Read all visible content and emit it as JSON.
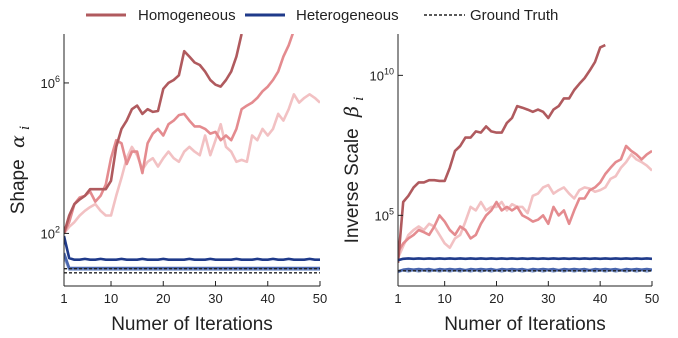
{
  "colors": {
    "homogeneous": [
      "#b05a5e",
      "#e48b8f",
      "#f2c1c3"
    ],
    "heterogeneous": [
      "#1f3a8a",
      "#4a66ad",
      "#8aa2d4"
    ],
    "ground_truth": "#222222"
  },
  "legend": {
    "homogeneous": "Homogeneous",
    "heterogeneous": "Heterogeneous",
    "ground_truth": "Ground Truth"
  },
  "chart_data": [
    {
      "type": "line",
      "panel": "left",
      "ylabel_prefix": "Shape",
      "ylabel_symbol": "α",
      "ylabel_sub": "i",
      "xlabel": "Numer of Iterations",
      "y_scale": "log",
      "xlim": [
        1,
        50
      ],
      "ylim": [
        4,
        20000000
      ],
      "x_ticks": [
        "1",
        "10",
        "20",
        "30",
        "40",
        "50"
      ],
      "y_ticks": [
        {
          "value": 100,
          "base": "10",
          "exp": "2"
        },
        {
          "value": 1000000,
          "base": "10",
          "exp": "6"
        }
      ],
      "x": [
        1,
        2,
        3,
        4,
        5,
        6,
        7,
        8,
        9,
        10,
        11,
        12,
        13,
        14,
        15,
        16,
        17,
        18,
        19,
        20,
        21,
        22,
        23,
        24,
        25,
        26,
        27,
        28,
        29,
        30,
        31,
        32,
        33,
        34,
        35,
        36,
        37,
        38,
        39,
        40,
        41,
        42,
        43,
        44,
        45,
        46,
        47,
        48,
        49,
        50
      ],
      "series": [
        {
          "group": "homogeneous",
          "shade": 0,
          "values": [
            100,
            300,
            600,
            800,
            1000,
            1500,
            1500,
            1500,
            1500,
            2500,
            20000,
            60000,
            100000,
            200000,
            250000,
            150000,
            200000,
            170000,
            180000,
            700000,
            1000000,
            1200000,
            1600000,
            7000000,
            5000000,
            3500000,
            3000000,
            2000000,
            1200000,
            900000,
            800000,
            1200000,
            2000000,
            5000000,
            20000000,
            null,
            null,
            null,
            null,
            null,
            null,
            null,
            null,
            null,
            null,
            null,
            null,
            null,
            null,
            null
          ]
        },
        {
          "group": "homogeneous",
          "shade": 1,
          "values": [
            100,
            200,
            600,
            900,
            1000,
            1300,
            700,
            1000,
            2000,
            10000,
            30000,
            25000,
            7000,
            15000,
            15000,
            4000,
            25000,
            45000,
            60000,
            40000,
            80000,
            100000,
            140000,
            150000,
            100000,
            70000,
            70000,
            60000,
            45000,
            50000,
            30000,
            40000,
            30000,
            60000,
            200000,
            250000,
            300000,
            400000,
            600000,
            800000,
            1200000,
            2000000,
            5000000,
            10000000,
            25000000,
            null,
            null,
            null,
            null,
            null
          ]
        },
        {
          "group": "homogeneous",
          "shade": 2,
          "values": [
            100,
            150,
            200,
            300,
            400,
            500,
            600,
            400,
            300,
            300,
            1000,
            3000,
            10000,
            20000,
            12000,
            5000,
            8000,
            10000,
            6000,
            10000,
            15000,
            10000,
            8000,
            15000,
            20000,
            15000,
            12000,
            40000,
            12000,
            30000,
            80000,
            20000,
            15000,
            8000,
            9000,
            8000,
            40000,
            30000,
            60000,
            40000,
            60000,
            150000,
            100000,
            200000,
            500000,
            300000,
            400000,
            500000,
            400000,
            300000
          ]
        },
        {
          "group": "heterogeneous",
          "shade": 0,
          "values": [
            85,
            22,
            20,
            20,
            21,
            20,
            20,
            21,
            20,
            20,
            20,
            21,
            20,
            20,
            20,
            21,
            20,
            20,
            20,
            21,
            20,
            20,
            20,
            20,
            21,
            20,
            20,
            20,
            21,
            20,
            20,
            20,
            20,
            21,
            20,
            20,
            20,
            21,
            20,
            20,
            21,
            20,
            20,
            21,
            20,
            20,
            20,
            21,
            20,
            20
          ]
        },
        {
          "group": "heterogeneous",
          "shade": 1,
          "values": [
            30,
            12,
            12,
            12,
            12,
            12,
            12,
            12,
            12,
            12,
            12,
            12,
            12,
            12,
            12,
            12,
            12,
            12,
            12,
            12,
            12,
            12,
            12,
            12,
            12,
            12,
            12,
            12,
            12,
            12,
            12,
            12,
            12,
            12,
            12,
            12,
            12,
            12,
            12,
            12,
            12,
            12,
            12,
            12,
            12,
            12,
            12,
            12,
            12,
            12
          ]
        },
        {
          "group": "heterogeneous",
          "shade": 2,
          "values": [
            25,
            11,
            11,
            11,
            11,
            11,
            11,
            11,
            11,
            11,
            11,
            11,
            11,
            11,
            11,
            11,
            11,
            11,
            11,
            11,
            11,
            11,
            11,
            11,
            11,
            11,
            11,
            11,
            11,
            11,
            11,
            11,
            11,
            11,
            11,
            11,
            11,
            11,
            11,
            11,
            11,
            11,
            11,
            11,
            11,
            11,
            11,
            11,
            11,
            11
          ]
        },
        {
          "group": "ground_truth",
          "values": [
            9,
            9,
            9,
            9,
            9,
            9,
            9,
            9,
            9,
            9,
            9,
            9,
            9,
            9,
            9,
            9,
            9,
            9,
            9,
            9,
            9,
            9,
            9,
            9,
            9,
            9,
            9,
            9,
            9,
            9,
            9,
            9,
            9,
            9,
            9,
            9,
            9,
            9,
            9,
            9,
            9,
            9,
            9,
            9,
            9,
            9,
            9,
            9,
            9,
            9
          ]
        },
        {
          "group": "ground_truth",
          "values": [
            11.5,
            11.5,
            11.5,
            11.5,
            11.5,
            11.5,
            11.5,
            11.5,
            11.5,
            11.5,
            11.5,
            11.5,
            11.5,
            11.5,
            11.5,
            11.5,
            11.5,
            11.5,
            11.5,
            11.5,
            11.5,
            11.5,
            11.5,
            11.5,
            11.5,
            11.5,
            11.5,
            11.5,
            11.5,
            11.5,
            11.5,
            11.5,
            11.5,
            11.5,
            11.5,
            11.5,
            11.5,
            11.5,
            11.5,
            11.5,
            11.5,
            11.5,
            11.5,
            11.5,
            11.5,
            11.5,
            11.5,
            11.5,
            11.5,
            11.5
          ]
        }
      ]
    },
    {
      "type": "line",
      "panel": "right",
      "ylabel_prefix": "Inverse Scale",
      "ylabel_symbol": "β",
      "ylabel_sub": "i",
      "xlabel": "Numer of Iterations",
      "y_scale": "log",
      "xlim": [
        1,
        50
      ],
      "ylim": [
        300,
        300000000000
      ],
      "x_ticks": [
        "1",
        "10",
        "20",
        "30",
        "40",
        "50"
      ],
      "y_ticks": [
        {
          "value": 100000,
          "base": "10",
          "exp": "5"
        },
        {
          "value": 10000000000,
          "base": "10",
          "exp": "10"
        }
      ],
      "x": [
        1,
        2,
        3,
        4,
        5,
        6,
        7,
        8,
        9,
        10,
        11,
        12,
        13,
        14,
        15,
        16,
        17,
        18,
        19,
        20,
        21,
        22,
        23,
        24,
        25,
        26,
        27,
        28,
        29,
        30,
        31,
        32,
        33,
        34,
        35,
        36,
        37,
        38,
        39,
        40,
        41,
        42,
        43,
        44,
        45,
        46,
        47,
        48,
        49,
        50
      ],
      "series": [
        {
          "group": "homogeneous",
          "shade": 0,
          "values": [
            2000,
            300000,
            500000,
            1000000,
            1500000,
            1500000,
            1800000,
            1800000,
            1700000,
            1700000,
            5000000,
            20000000,
            30000000,
            60000000,
            60000000,
            100000000,
            90000000,
            150000000,
            100000000,
            90000000,
            90000000,
            200000000,
            300000000,
            800000000,
            700000000,
            600000000,
            500000000,
            600000000,
            500000000,
            300000000,
            600000000,
            800000000,
            1500000000,
            1500000000,
            3000000000,
            5000000000,
            8000000000,
            15000000000,
            30000000000,
            100000000000,
            120000000000,
            null,
            null,
            null,
            null,
            null,
            null,
            null,
            null,
            null
          ]
        },
        {
          "group": "homogeneous",
          "shade": 1,
          "values": [
            5000,
            10000,
            15000,
            20000,
            30000,
            25000,
            20000,
            40000,
            100000,
            60000,
            30000,
            20000,
            40000,
            30000,
            15000,
            20000,
            50000,
            100000,
            150000,
            300000,
            150000,
            200000,
            150000,
            200000,
            100000,
            80000,
            60000,
            70000,
            100000,
            50000,
            200000,
            100000,
            150000,
            50000,
            150000,
            400000,
            400000,
            800000,
            1000000,
            1500000,
            3000000,
            5000000,
            8000000,
            10000000,
            30000000,
            20000000,
            15000000,
            10000000,
            15000000,
            20000000
          ]
        },
        {
          "group": "homogeneous",
          "shade": 2,
          "values": [
            3000,
            8000,
            20000,
            30000,
            40000,
            30000,
            50000,
            40000,
            20000,
            10000,
            7000,
            15000,
            20000,
            60000,
            200000,
            150000,
            300000,
            150000,
            200000,
            200000,
            300000,
            150000,
            250000,
            200000,
            200000,
            120000,
            500000,
            600000,
            1000000,
            1200000,
            600000,
            800000,
            1000000,
            600000,
            400000,
            800000,
            1000000,
            900000,
            700000,
            800000,
            1000000,
            2000000,
            2500000,
            5000000,
            8000000,
            15000000,
            10000000,
            8000000,
            6000000,
            4000000
          ]
        },
        {
          "group": "heterogeneous",
          "shade": 0,
          "values": [
            2500,
            2800,
            2900,
            2800,
            2900,
            2800,
            2900,
            2800,
            2900,
            2800,
            2900,
            2800,
            2900,
            2800,
            2900,
            2800,
            2900,
            2800,
            2900,
            2800,
            2900,
            2800,
            2900,
            2800,
            2900,
            2800,
            2900,
            2800,
            2900,
            2800,
            2900,
            2800,
            2900,
            2800,
            2900,
            2800,
            2900,
            2800,
            2900,
            2800,
            2900,
            2800,
            2900,
            2800,
            2900,
            2800,
            2900,
            2800,
            2900,
            2800
          ]
        },
        {
          "group": "heterogeneous",
          "shade": 1,
          "values": [
            1000,
            1150,
            1200,
            1150,
            1200,
            1150,
            1200,
            1100,
            1200,
            1150,
            1200,
            1150,
            1200,
            1100,
            1200,
            1150,
            1200,
            1150,
            1200,
            1100,
            1200,
            1150,
            1200,
            1150,
            1200,
            1100,
            1200,
            1150,
            1200,
            1150,
            1200,
            1100,
            1200,
            1150,
            1200,
            1150,
            1200,
            1100,
            1200,
            1150,
            1200,
            1150,
            1200,
            1100,
            1200,
            1150,
            1200,
            1150,
            1200,
            1150
          ]
        },
        {
          "group": "heterogeneous",
          "shade": 2,
          "values": [
            950,
            1100,
            1000,
            1100,
            1000,
            1100,
            1000,
            1100,
            1000,
            1100,
            1000,
            1100,
            1000,
            1100,
            1000,
            1100,
            1000,
            1100,
            1000,
            1100,
            1000,
            1100,
            1000,
            1100,
            1000,
            1100,
            1000,
            1100,
            1000,
            1100,
            1000,
            1100,
            1000,
            1100,
            1000,
            1100,
            1000,
            1100,
            1000,
            1100,
            1000,
            1100,
            1000,
            1100,
            1000,
            1100,
            1000,
            1100,
            1000,
            1100
          ]
        },
        {
          "group": "ground_truth",
          "values": [
            1050,
            1050,
            1050,
            1050,
            1050,
            1050,
            1050,
            1050,
            1050,
            1050,
            1050,
            1050,
            1050,
            1050,
            1050,
            1050,
            1050,
            1050,
            1050,
            1050,
            1050,
            1050,
            1050,
            1050,
            1050,
            1050,
            1050,
            1050,
            1050,
            1050,
            1050,
            1050,
            1050,
            1050,
            1050,
            1050,
            1050,
            1050,
            1050,
            1050,
            1050,
            1050,
            1050,
            1050,
            1050,
            1050,
            1050,
            1050,
            1050,
            1050
          ]
        }
      ]
    }
  ]
}
